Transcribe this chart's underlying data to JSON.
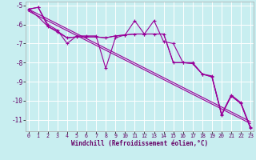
{
  "xlabel": "Windchill (Refroidissement éolien,°C)",
  "background_color": "#c8eef0",
  "line_color": "#990099",
  "grid_color": "#ffffff",
  "x": [
    0,
    1,
    2,
    3,
    4,
    5,
    6,
    7,
    8,
    9,
    10,
    11,
    12,
    13,
    14,
    15,
    16,
    17,
    18,
    19,
    20,
    21,
    22,
    23
  ],
  "y_wavy": [
    -5.2,
    -5.1,
    -6.0,
    -6.3,
    -7.0,
    -6.6,
    -6.6,
    -6.6,
    -8.3,
    -6.7,
    -6.55,
    -5.8,
    -6.5,
    -5.8,
    -6.9,
    -7.0,
    -8.0,
    -8.0,
    -8.6,
    -8.7,
    -10.7,
    -9.7,
    -10.1,
    -11.4
  ],
  "y_mid": [
    -5.2,
    -5.1,
    -6.1,
    -6.4,
    -6.7,
    -6.65,
    -6.65,
    -6.65,
    -6.7,
    -6.6,
    -6.55,
    -6.5,
    -6.5,
    -6.5,
    -6.5,
    -8.0,
    -8.0,
    -8.05,
    -8.6,
    -8.75,
    -10.75,
    -9.75,
    -10.15,
    -11.45
  ],
  "y_smooth": [
    -5.2,
    -5.6,
    -6.1,
    -6.35,
    -6.7,
    -6.65,
    -6.65,
    -6.65,
    -6.7,
    -6.6,
    -6.55,
    -6.5,
    -6.5,
    -6.5,
    -6.5,
    -8.0,
    -8.0,
    -8.05,
    -8.6,
    -8.75,
    -10.75,
    -9.75,
    -10.15,
    -11.45
  ],
  "trend_x": [
    0,
    23
  ],
  "trend1_y": [
    -5.2,
    -11.1
  ],
  "trend2_y": [
    -5.3,
    -11.2
  ],
  "ylim": [
    -11.6,
    -4.8
  ],
  "yticks": [
    -5,
    -6,
    -7,
    -8,
    -9,
    -10,
    -11
  ],
  "xlim": [
    -0.3,
    23.3
  ],
  "xticks": [
    0,
    1,
    2,
    3,
    4,
    5,
    6,
    7,
    8,
    9,
    10,
    11,
    12,
    13,
    14,
    15,
    16,
    17,
    18,
    19,
    20,
    21,
    22,
    23
  ]
}
